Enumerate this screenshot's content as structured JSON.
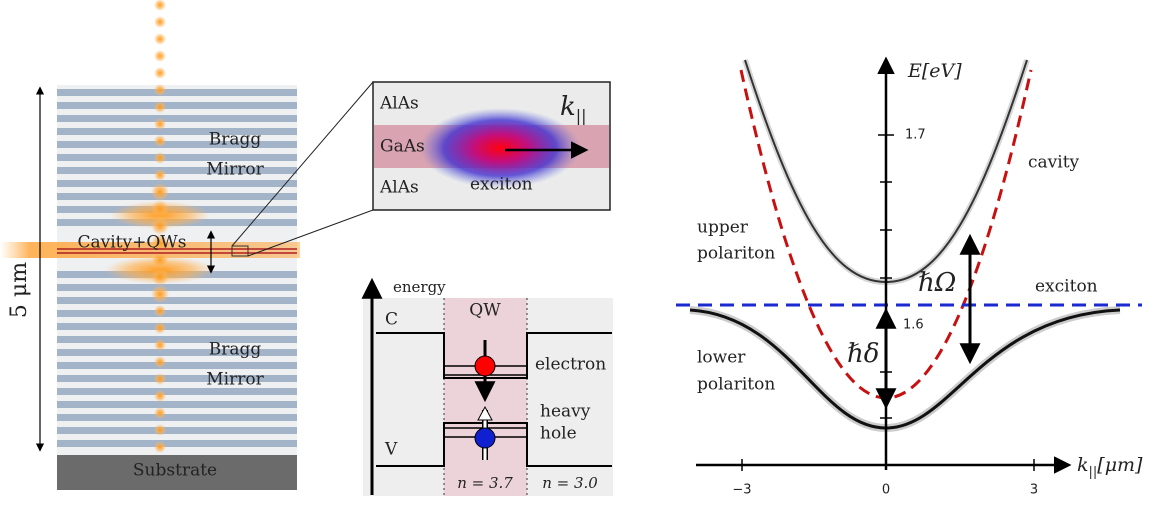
{
  "left_panel": {
    "height_label": "5 μm",
    "top_mirror": [
      "Bragg",
      "Mirror"
    ],
    "cavity": "Cavity+QWs",
    "bottom_mirror": [
      "Bragg",
      "Mirror"
    ],
    "substrate": "Substrate"
  },
  "inset": {
    "top_layer": "AlAs",
    "middle_layer": "GaAs",
    "bottom_layer": "AlAs",
    "exciton": "exciton",
    "momentum": {
      "symbol": "k",
      "subscript": "||"
    }
  },
  "band_diagram": {
    "axis": "energy",
    "well": "QW",
    "conduction": "C",
    "valence": "V",
    "electron": "electron",
    "hole": [
      "heavy",
      "hole"
    ],
    "index_well": "n = 3.7",
    "index_barrier": "n = 3.0"
  },
  "dispersion": {
    "y_axis": "E[eV]",
    "x_axis": {
      "symbol": "k",
      "subscript": "||",
      "unit": "[μm]"
    },
    "y_ticks": [
      "1.7",
      "1.6"
    ],
    "x_ticks": [
      "−3",
      "0",
      "3"
    ],
    "labels": {
      "cavity": "cavity",
      "upper": [
        "upper",
        "polariton"
      ],
      "exciton": "exciton",
      "lower": [
        "lower",
        "polariton"
      ],
      "rabi": "ℏΩ",
      "detuning": "ℏδ"
    }
  }
}
